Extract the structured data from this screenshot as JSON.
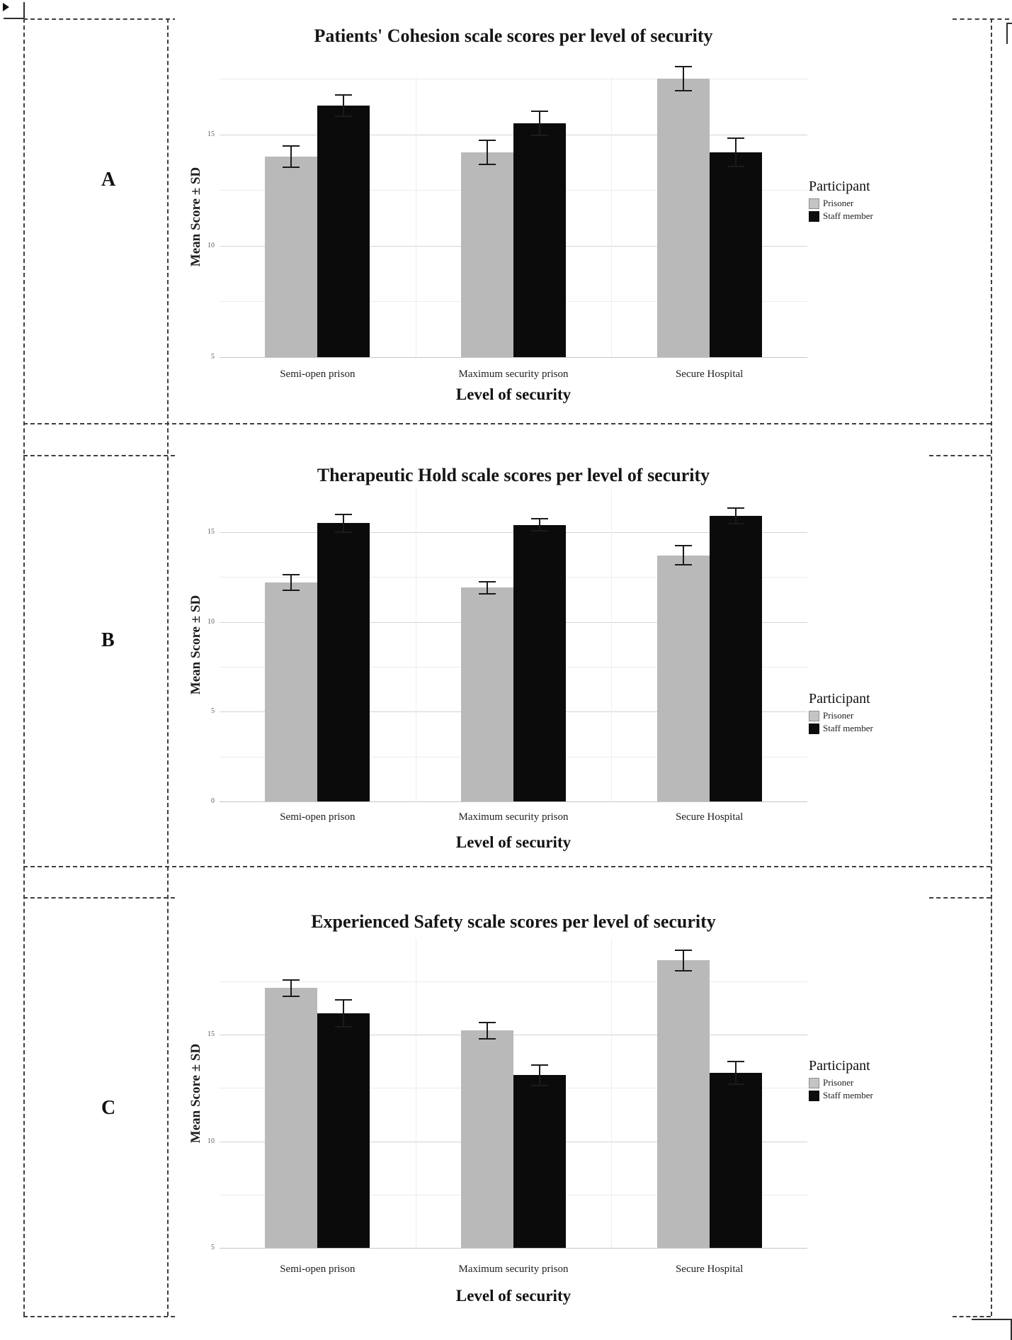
{
  "figure": {
    "panel_letters": [
      "A",
      "B",
      "C"
    ],
    "xlabel": "Level of security",
    "ylabel": "Mean Score ± SD",
    "legend": {
      "title": "Participant",
      "items": [
        {
          "label": "Prisoner",
          "color": "#c4c4c4"
        },
        {
          "label": "Staff member",
          "color": "#0d0d0d"
        }
      ]
    },
    "colors": {
      "prisoner_bar": "#b9b9b9",
      "staff_bar": "#0b0b0b",
      "gridline": "#d4d4d4",
      "dashed_border": "#3f3f3f"
    }
  },
  "chart_data": [
    {
      "type": "bar",
      "title": "Patients' Cohesion scale scores per level of security",
      "xlabel": "Level of security",
      "ylabel": "Mean Score ± SD",
      "categories": [
        "Semi-open prison",
        "Maximum security prison",
        "Secure Hospital"
      ],
      "series": [
        {
          "name": "Prisoner",
          "color": "#b9b9b9",
          "values": [
            14.0,
            14.2,
            17.5
          ],
          "errors": [
            0.45,
            0.5,
            0.5
          ]
        },
        {
          "name": "Staff member",
          "color": "#0b0b0b",
          "values": [
            16.3,
            15.5,
            14.2
          ],
          "errors": [
            0.45,
            0.5,
            0.6
          ]
        }
      ],
      "ylim": [
        5,
        17.6
      ],
      "yticks": [
        15,
        10,
        5
      ],
      "grid": true,
      "legend_position": "right"
    },
    {
      "type": "bar",
      "title": "Therapeutic Hold scale scores per level of security",
      "xlabel": "Level of security",
      "ylabel": "Mean Score ± SD",
      "categories": [
        "Semi-open prison",
        "Maximum security prison",
        "Secure Hospital"
      ],
      "series": [
        {
          "name": "Prisoner",
          "color": "#b9b9b9",
          "values": [
            12.2,
            11.9,
            13.7
          ],
          "errors": [
            0.4,
            0.3,
            0.5
          ]
        },
        {
          "name": "Staff member",
          "color": "#0b0b0b",
          "values": [
            15.5,
            15.4,
            15.9
          ],
          "errors": [
            0.45,
            0.3,
            0.4
          ]
        }
      ],
      "ylim": [
        0,
        17.4
      ],
      "yticks": [
        15,
        10,
        5,
        0
      ],
      "grid": true,
      "legend_position": "right"
    },
    {
      "type": "bar",
      "title": "Experienced Safety scale scores per level of security",
      "xlabel": "Level of security",
      "ylabel": "Mean Score ± SD",
      "categories": [
        "Semi-open prison",
        "Maximum security prison",
        "Secure Hospital"
      ],
      "series": [
        {
          "name": "Prisoner",
          "color": "#b9b9b9",
          "values": [
            17.2,
            15.2,
            18.5
          ],
          "errors": [
            0.35,
            0.35,
            0.45
          ]
        },
        {
          "name": "Staff member",
          "color": "#0b0b0b",
          "values": [
            16.0,
            13.1,
            13.2
          ],
          "errors": [
            0.6,
            0.45,
            0.5
          ]
        }
      ],
      "ylim": [
        5,
        19.5
      ],
      "yticks": [
        15,
        10,
        5
      ],
      "grid": true,
      "legend_position": "right"
    }
  ]
}
